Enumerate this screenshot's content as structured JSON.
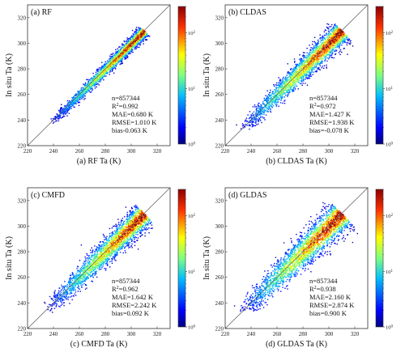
{
  "chart_data": [
    {
      "type": "scatter",
      "title": "(a) RF",
      "xlabel": "(a) RF Ta (K)",
      "ylabel": "In situ Ta (K)",
      "xlim": [
        220,
        330
      ],
      "ylim": [
        220,
        330
      ],
      "xticks": [
        "220",
        "240",
        "260",
        "280",
        "300",
        "320"
      ],
      "yticks": [
        "220",
        "240",
        "260",
        "280",
        "300",
        "320"
      ],
      "reference_line": "1:1",
      "density": {
        "center_slope": 1.0,
        "spread_K": 3.0,
        "lower_tail_K": 238
      },
      "colorbar": {
        "scale": "log",
        "min": 1,
        "max": 300,
        "ticks": [
          "10",
          "10",
          "10"
        ],
        "exponents": [
          "0",
          "1",
          "2"
        ]
      },
      "stats": [
        "n=857344",
        "R",
        "=0.992",
        "MAE=0.680 K",
        "RMSE=1.010 K",
        "bias-0.063 K"
      ],
      "stats_sup": "2"
    },
    {
      "type": "scatter",
      "title": "(b) CLDAS",
      "xlabel": "(b) CLDAS Ta (K)",
      "ylabel": "In situ Ta (K)",
      "xlim": [
        220,
        330
      ],
      "ylim": [
        220,
        330
      ],
      "xticks": [
        "220",
        "240",
        "260",
        "280",
        "300",
        "320"
      ],
      "yticks": [
        "220",
        "240",
        "260",
        "280",
        "300",
        "320"
      ],
      "reference_line": "1:1",
      "density": {
        "center_slope": 1.0,
        "spread_K": 5.5,
        "lower_tail_K": 232
      },
      "colorbar": {
        "scale": "log",
        "min": 1,
        "max": 300,
        "ticks": [
          "10",
          "10",
          "10"
        ],
        "exponents": [
          "0",
          "1",
          "2"
        ]
      },
      "stats": [
        "n=857344",
        "R",
        "=0.972",
        "MAE=1.427 K",
        "RMSE=1.938 K",
        "bias=-0.078 K"
      ],
      "stats_sup": "2"
    },
    {
      "type": "scatter",
      "title": "(c) CMFD",
      "xlabel": "(c) CMFD Ta (K)",
      "ylabel": "In situ Ta (K)",
      "xlim": [
        220,
        330
      ],
      "ylim": [
        220,
        330
      ],
      "xticks": [
        "220",
        "240",
        "260",
        "280",
        "300",
        "320"
      ],
      "yticks": [
        "220",
        "240",
        "260",
        "280",
        "300",
        "320"
      ],
      "reference_line": "1:1",
      "density": {
        "center_slope": 1.0,
        "spread_K": 6.0,
        "lower_tail_K": 235
      },
      "colorbar": {
        "scale": "log",
        "min": 1,
        "max": 300,
        "ticks": [
          "10",
          "10",
          "10"
        ],
        "exponents": [
          "0",
          "1",
          "2"
        ]
      },
      "stats": [
        "n=857344",
        "R",
        "=0.962",
        "MAE=1.642 K",
        "RMSE=2.242 K",
        "bias=0.092 K"
      ],
      "stats_sup": "2"
    },
    {
      "type": "scatter",
      "title": "(d) GLDAS",
      "xlabel": "(d) GLDAS Ta (K)",
      "ylabel": "In situ Ta (K)",
      "xlim": [
        220,
        330
      ],
      "ylim": [
        220,
        330
      ],
      "xticks": [
        "220",
        "240",
        "260",
        "280",
        "300",
        "320"
      ],
      "yticks": [
        "220",
        "240",
        "260",
        "280",
        "300",
        "320"
      ],
      "reference_line": "1:1",
      "density": {
        "center_slope": 1.0,
        "spread_K": 7.5,
        "lower_tail_K": 232
      },
      "colorbar": {
        "scale": "log",
        "min": 1,
        "max": 300,
        "ticks": [
          "10",
          "10",
          "10"
        ],
        "exponents": [
          "0",
          "1",
          "2"
        ]
      },
      "stats": [
        "n=857344",
        "R",
        "=0.938",
        "MAE=2.160 K",
        "RMSE=2.874 K",
        "bias=0.900 K"
      ],
      "stats_sup": "2"
    }
  ]
}
